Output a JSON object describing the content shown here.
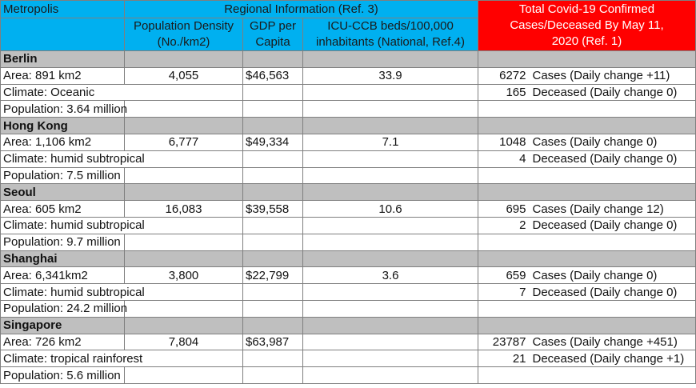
{
  "header": {
    "metropolis": "Metropolis",
    "regional_info": "Regional Information (Ref. 3)",
    "density": "Population Density (No./km2)",
    "gdp": "GDP per Capita",
    "icu": "ICU-CCB beds/100,000 inhabitants (National, Ref.4)",
    "covid": "Total Covid-19 Confirmed Cases/Deceased By May 11, 2020 (Ref. 1)"
  },
  "cities": [
    {
      "name": "Berlin",
      "area": "Area: 891 km2",
      "climate": "Climate: Oceanic",
      "population": "Population: 3.64 million",
      "density": "4,055",
      "gdp": "$46,563",
      "icu": "33.9",
      "cases_num": "6272",
      "cases_text": "Cases (Daily change +11)",
      "deceased_num": "165",
      "deceased_text": "Deceased (Daily change 0)"
    },
    {
      "name": "Hong Kong",
      "area": "Area: 1,106 km2",
      "climate": "Climate: humid subtropical",
      "population": "Population: 7.5 million",
      "density": "6,777",
      "gdp": "$49,334",
      "icu": "7.1",
      "cases_num": "1048",
      "cases_text": "Cases (Daily change 0)",
      "deceased_num": "4",
      "deceased_text": "Deceased (Daily change 0)"
    },
    {
      "name": "Seoul",
      "area": "Area: 605 km2",
      "climate": "Climate: humid subtropical",
      "population": "Population: 9.7 million",
      "density": "16,083",
      "gdp": "$39,558",
      "icu": "10.6",
      "cases_num": "695",
      "cases_text": "Cases (Daily change 12)",
      "deceased_num": "2",
      "deceased_text": "Deceased (Daily change 0)"
    },
    {
      "name": "Shanghai",
      "area": "Area: 6,341km2",
      "climate": "Climate: humid subtropical",
      "population": "Population: 24.2 million",
      "density": "3,800",
      "gdp": "$22,799",
      "icu": "3.6",
      "cases_num": "659",
      "cases_text": "Cases (Daily change 0)",
      "deceased_num": "7",
      "deceased_text": "Deceased (Daily change 0)"
    },
    {
      "name": "Singapore",
      "area": "Area: 726 km2",
      "climate": "Climate: tropical rainforest",
      "population": "Population: 5.6 million",
      "density": "7,804",
      "gdp": "$63,987",
      "icu": "",
      "cases_num": "23787",
      "cases_text": "Cases (Daily change +451)",
      "deceased_num": "21",
      "deceased_text": "Deceased (Daily change +1)"
    }
  ]
}
